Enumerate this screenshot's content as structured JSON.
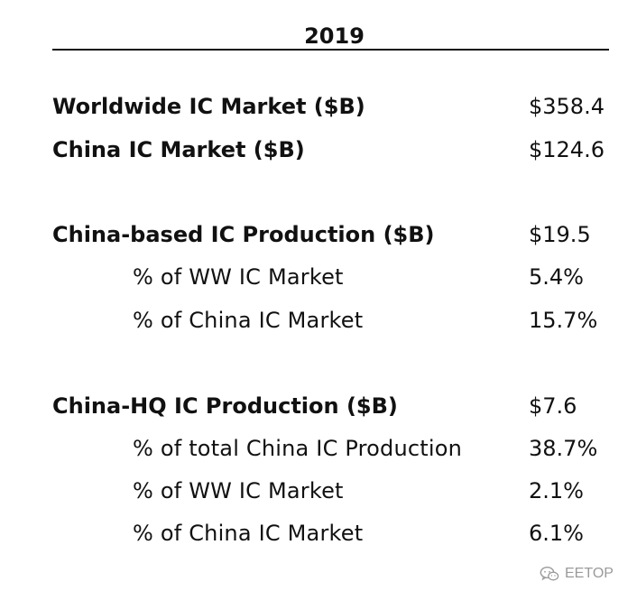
{
  "table": {
    "year": "2019",
    "rows": [
      {
        "label": "Worldwide IC Market ($B)",
        "value": "$358.4",
        "style": "main"
      },
      {
        "label": "China IC Market ($B)",
        "value": "$124.6",
        "style": "main"
      },
      {
        "label": "China-based IC Production ($B)",
        "value": "$19.5",
        "style": "main"
      },
      {
        "label": "% of WW IC Market",
        "value": "5.4%",
        "style": "sub"
      },
      {
        "label": "% of China IC Market",
        "value": "15.7%",
        "style": "sub"
      },
      {
        "label": "China-HQ IC Production ($B)",
        "value": "$7.6",
        "style": "main"
      },
      {
        "label": "% of total China IC Production",
        "value": "38.7%",
        "style": "sub"
      },
      {
        "label": "% of WW IC Market",
        "value": "2.1%",
        "style": "sub"
      },
      {
        "label": "% of China IC Market",
        "value": "6.1%",
        "style": "sub"
      }
    ]
  },
  "watermark": {
    "icon": "wechat-icon",
    "text": "EETOP"
  }
}
